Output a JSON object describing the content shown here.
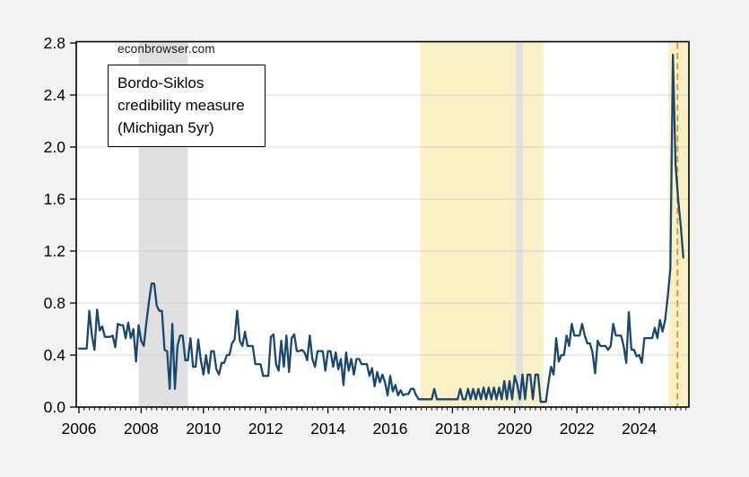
{
  "watermark": "econbrowser.com",
  "annotation": {
    "line1": "Bordo-Siklos",
    "line2": "credibility measure",
    "line3": "(Michigan 5yr)"
  },
  "chart_data": {
    "type": "line",
    "title": "Bordo-Siklos credibility measure (Michigan 5yr)",
    "frequency": "monthly",
    "x_start": {
      "year": 2006,
      "month": 1
    },
    "x_end": {
      "year": 2025,
      "month": 6
    },
    "xlim": [
      2005.91,
      2025.6
    ],
    "ylim": [
      0,
      2.8
    ],
    "grid": "horizontal",
    "xticks": [
      2006,
      2008,
      2010,
      2012,
      2014,
      2016,
      2018,
      2020,
      2022,
      2024
    ],
    "xtick_labels": [
      "2006",
      "2008",
      "2010",
      "2012",
      "2014",
      "2016",
      "2018",
      "2020",
      "2022",
      "2024"
    ],
    "yticks": [
      0.0,
      0.4,
      0.8,
      1.2,
      1.6,
      2.0,
      2.4,
      2.8
    ],
    "ytick_labels": [
      "0.0",
      "0.4",
      "0.8",
      "1.2",
      "1.6",
      "2.0",
      "2.4",
      "2.8"
    ],
    "bands": [
      {
        "name": "recession-2007-2009",
        "from": 2007.92,
        "to": 2009.5,
        "color": "#e0e0e0"
      },
      {
        "name": "shading-2017-2021",
        "from": 2016.97,
        "to": 2020.92,
        "color": "#faf0c5"
      },
      {
        "name": "recession-2020",
        "from": 2020.05,
        "to": 2020.27,
        "color": "#e0e0e0"
      },
      {
        "name": "shading-2025",
        "from": 2024.94,
        "to": 2025.6,
        "color": "#faf0c5"
      }
    ],
    "vline": {
      "x": 2025.23,
      "color": "#ee8524",
      "style": "dashed"
    },
    "series": [
      {
        "name": "Bordo-Siklos credibility measure (Michigan 5yr)",
        "color": "#1a476f",
        "values": [
          0.45,
          0.45,
          0.45,
          0.45,
          0.74,
          0.55,
          0.44,
          0.75,
          0.59,
          0.62,
          0.54,
          0.54,
          0.54,
          0.55,
          0.46,
          0.64,
          0.63,
          0.63,
          0.53,
          0.65,
          0.53,
          0.6,
          0.35,
          0.63,
          0.51,
          0.47,
          0.65,
          0.81,
          0.95,
          0.95,
          0.78,
          0.74,
          0.74,
          0.44,
          0.43,
          0.14,
          0.64,
          0.14,
          0.47,
          0.55,
          0.55,
          0.36,
          0.36,
          0.53,
          0.31,
          0.31,
          0.52,
          0.36,
          0.25,
          0.4,
          0.26,
          0.43,
          0.43,
          0.29,
          0.25,
          0.34,
          0.34,
          0.4,
          0.4,
          0.49,
          0.52,
          0.74,
          0.51,
          0.47,
          0.58,
          0.47,
          0.47,
          0.47,
          0.33,
          0.33,
          0.33,
          0.24,
          0.24,
          0.24,
          0.54,
          0.56,
          0.33,
          0.28,
          0.51,
          0.31,
          0.55,
          0.27,
          0.53,
          0.56,
          0.43,
          0.43,
          0.44,
          0.42,
          0.36,
          0.55,
          0.37,
          0.31,
          0.43,
          0.43,
          0.43,
          0.28,
          0.43,
          0.43,
          0.31,
          0.42,
          0.29,
          0.37,
          0.17,
          0.42,
          0.28,
          0.37,
          0.25,
          0.37,
          0.37,
          0.33,
          0.33,
          0.33,
          0.24,
          0.3,
          0.16,
          0.27,
          0.19,
          0.25,
          0.19,
          0.09,
          0.24,
          0.12,
          0.17,
          0.09,
          0.13,
          0.09,
          0.1,
          0.1,
          0.14,
          0.14,
          0.09,
          0.06,
          0.06,
          0.06,
          0.06,
          0.06,
          0.06,
          0.14,
          0.06,
          0.06,
          0.06,
          0.06,
          0.06,
          0.06,
          0.06,
          0.06,
          0.06,
          0.14,
          0.06,
          0.06,
          0.14,
          0.06,
          0.14,
          0.06,
          0.14,
          0.06,
          0.15,
          0.06,
          0.15,
          0.06,
          0.15,
          0.06,
          0.15,
          0.06,
          0.2,
          0.06,
          0.2,
          0.06,
          0.24,
          0.17,
          0.06,
          0.25,
          0.06,
          0.25,
          0.25,
          0.06,
          0.25,
          0.25,
          0.04,
          0.04,
          0.04,
          0.18,
          0.31,
          0.25,
          0.53,
          0.35,
          0.4,
          0.4,
          0.55,
          0.47,
          0.64,
          0.55,
          0.55,
          0.55,
          0.64,
          0.55,
          0.49,
          0.49,
          0.42,
          0.26,
          0.51,
          0.47,
          0.47,
          0.47,
          0.44,
          0.47,
          0.64,
          0.55,
          0.55,
          0.55,
          0.47,
          0.34,
          0.73,
          0.44,
          0.44,
          0.39,
          0.4,
          0.34,
          0.53,
          0.53,
          0.53,
          0.53,
          0.61,
          0.53,
          0.67,
          0.58,
          0.67,
          0.85,
          1.06,
          2.71,
          1.87,
          1.6,
          1.4,
          1.15
        ]
      }
    ],
    "colors": {
      "plot_background": "#ffffff",
      "outer_background": "#f2f2f2",
      "gridline": "#d5d5d5",
      "axis": "#000000"
    }
  }
}
